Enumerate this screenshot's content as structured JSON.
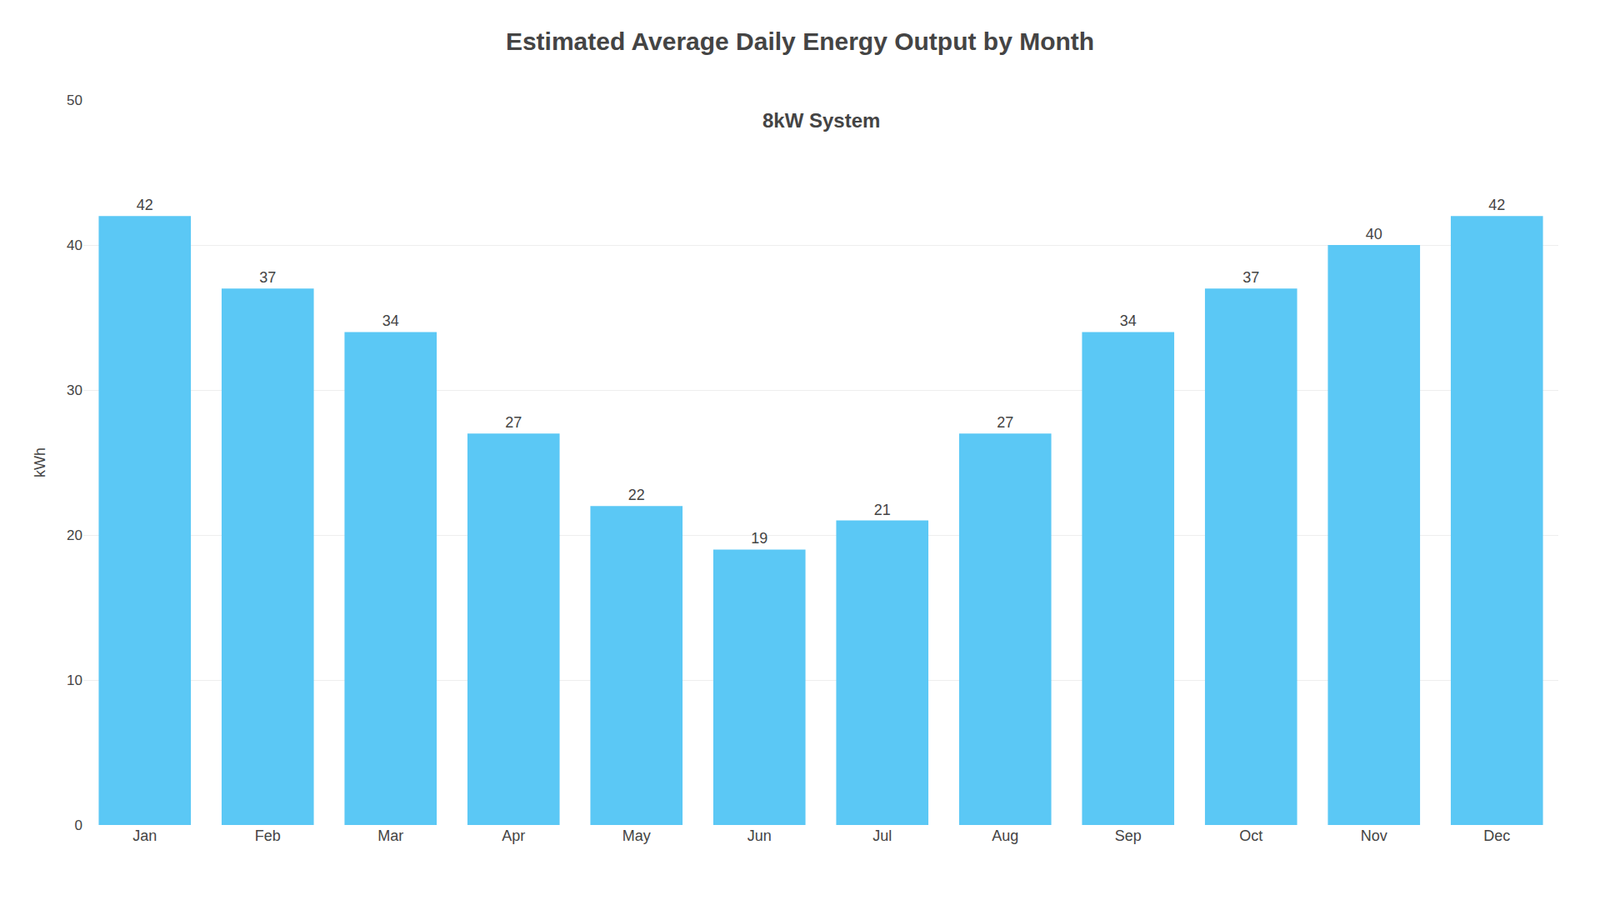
{
  "chart_data": {
    "type": "bar",
    "title": "Estimated Average Daily Energy Output by Month",
    "subtitle": "8kW System",
    "categories": [
      "Jan",
      "Feb",
      "Mar",
      "Apr",
      "May",
      "Jun",
      "Jul",
      "Aug",
      "Sep",
      "Oct",
      "Nov",
      "Dec"
    ],
    "values": [
      42,
      37,
      34,
      27,
      22,
      19,
      21,
      27,
      34,
      37,
      40,
      42
    ],
    "color": "#5BC8F5",
    "ylabel": "kWh",
    "ylim": [
      0,
      50
    ],
    "yticks": [
      0,
      10,
      20,
      30,
      40,
      50
    ],
    "grid": true,
    "data_labels": true
  }
}
